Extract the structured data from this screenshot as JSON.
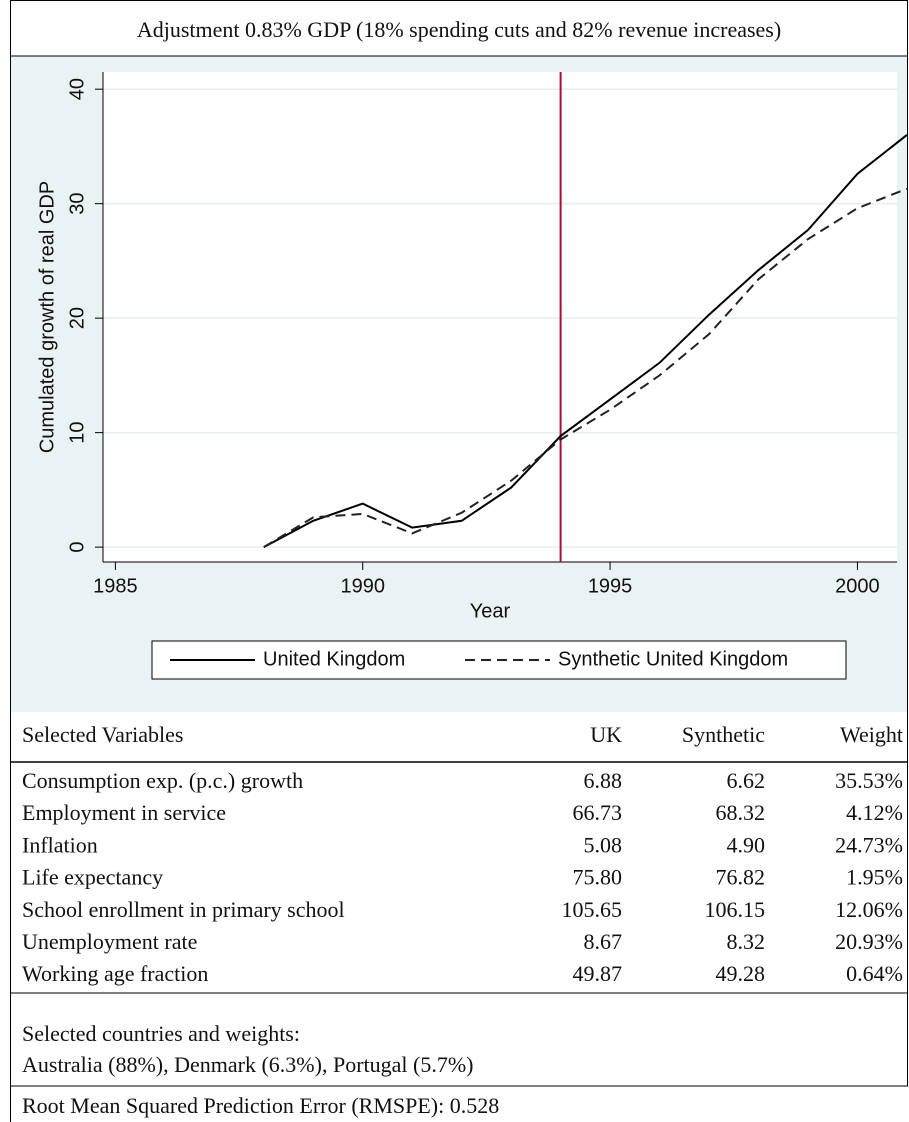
{
  "chart_data": {
    "type": "line",
    "title": "Adjustment 0.83% GDP (18% spending cuts and 82% revenue increases)",
    "xlabel": "Year",
    "ylabel": "Cumulated growth of real GDP",
    "x": [
      1988,
      1989,
      1990,
      1991,
      1992,
      1993,
      1994,
      1995,
      1996,
      1997,
      1998,
      1999,
      2000,
      2001
    ],
    "series": [
      {
        "name": "United Kingdom",
        "color": "#000000",
        "style": "solid",
        "values": [
          0,
          2.3,
          3.8,
          1.7,
          2.3,
          5.2,
          9.7,
          12.9,
          16.1,
          20.3,
          24.2,
          27.7,
          32.6,
          36.0
        ]
      },
      {
        "name": "Synthetic United Kingdom",
        "color": "#222222",
        "style": "dashed",
        "values": [
          0,
          2.6,
          2.9,
          1.2,
          3.0,
          5.8,
          9.4,
          12.0,
          15.0,
          18.6,
          23.4,
          26.9,
          29.6,
          31.3
        ]
      }
    ],
    "reference_line": {
      "x": 1994,
      "color": "#a50f3a"
    },
    "xlim": [
      1984.75,
      2000.8
    ],
    "xticks": [
      1985,
      1990,
      1995,
      2000
    ],
    "ylim": [
      -1.3,
      41.5
    ],
    "yticks": [
      0,
      10,
      20,
      30,
      40
    ],
    "grid": true,
    "legend": "bottom"
  },
  "table": {
    "header": [
      "Selected Variables",
      "UK",
      "Synthetic",
      "Weight"
    ],
    "rows": [
      [
        "Consumption exp. (p.c.) growth",
        "6.88",
        "6.62",
        "35.53%"
      ],
      [
        "Employment in service",
        "66.73",
        "68.32",
        "4.12%"
      ],
      [
        "Inflation",
        "5.08",
        "4.90",
        "24.73%"
      ],
      [
        "Life expectancy",
        "75.80",
        "76.82",
        "1.95%"
      ],
      [
        "School enrollment in primary school",
        "105.65",
        "106.15",
        "12.06%"
      ],
      [
        "Unemployment rate",
        "8.67",
        "8.32",
        "20.93%"
      ],
      [
        "Working age fraction",
        "49.87",
        "49.28",
        "0.64%"
      ]
    ]
  },
  "notes": {
    "countries_label": "Selected countries and weights:",
    "countries": "Australia (88%), Denmark (6.3%), Portugal (5.7%)",
    "rmspe": "Root Mean Squared Prediction Error (RMSPE): 0.528"
  }
}
